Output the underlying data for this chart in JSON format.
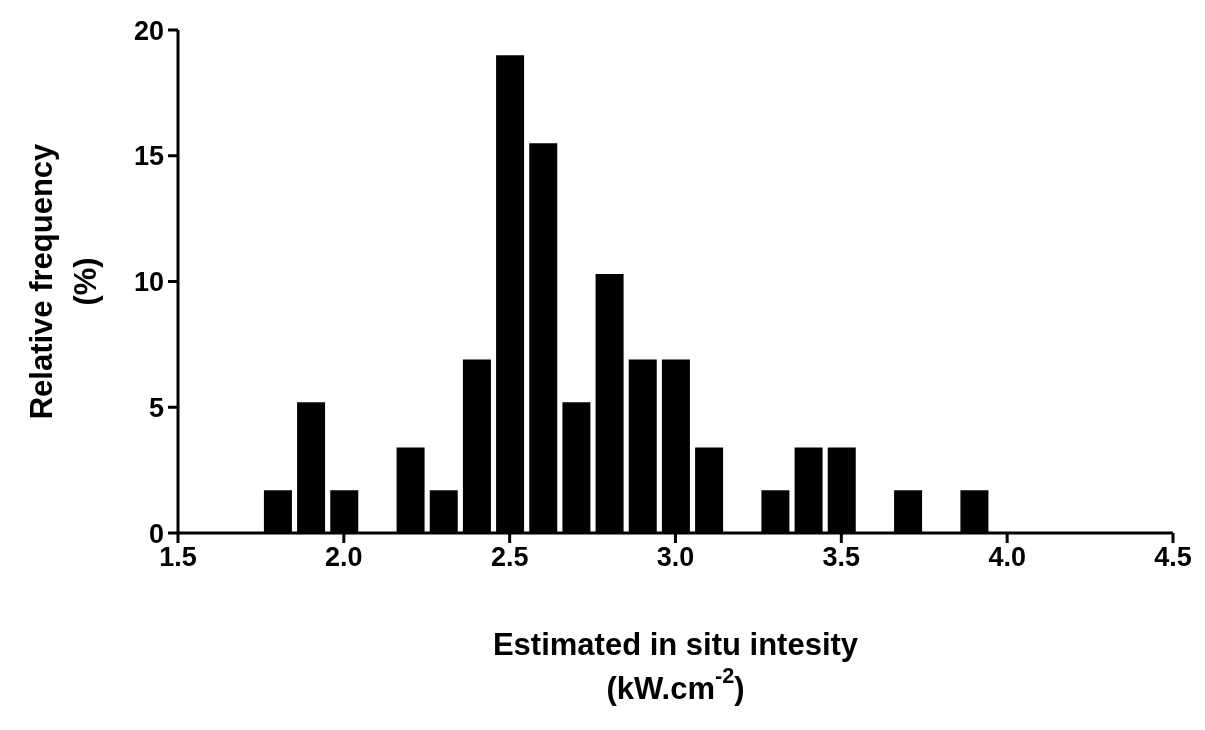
{
  "chart_data": {
    "type": "bar",
    "xlabel": "Estimated in situ intesity\n(kW.cm$^{-2}$)",
    "ylabel": "Relative frequency\n(%)",
    "x": [
      1.8,
      1.9,
      2.0,
      2.2,
      2.3,
      2.4,
      2.5,
      2.6,
      2.7,
      2.8,
      2.9,
      3.0,
      3.1,
      3.3,
      3.4,
      3.5,
      3.7,
      3.9
    ],
    "values": [
      1.7,
      5.2,
      1.7,
      3.4,
      1.7,
      6.9,
      19.0,
      15.5,
      5.2,
      10.3,
      6.9,
      6.9,
      3.4,
      1.7,
      3.4,
      3.4,
      1.7,
      1.7
    ],
    "color": "#000000",
    "xlim": [
      1.5,
      4.5
    ],
    "xticks": [
      1.5,
      {
        "value": 2,
        "label": "2.0"
      },
      2.5,
      {
        "value": 3,
        "label": "3.0"
      },
      3.5,
      {
        "value": 4,
        "label": "4.0"
      },
      4.5
    ],
    "ylim": [
      0,
      20
    ],
    "yticks": [
      0,
      5,
      10,
      15,
      20
    ],
    "grid": false
  }
}
